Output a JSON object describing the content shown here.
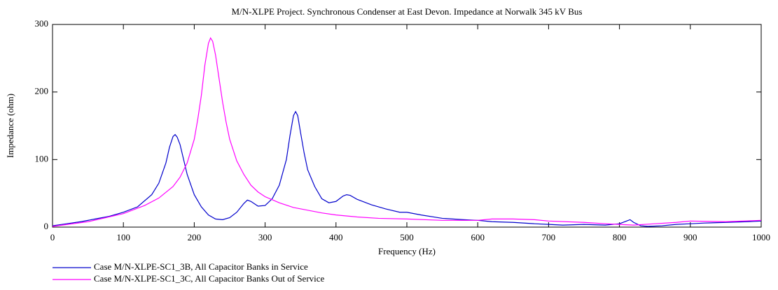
{
  "chart_data": {
    "type": "line",
    "title": "M/N-XLPE Project. Synchronous Condenser at East Devon. Impedance at Norwalk 345 kV Bus",
    "xlabel": "Frequency (Hz)",
    "ylabel": "Impedance (ohm)",
    "xlim": [
      0,
      1000
    ],
    "ylim": [
      0,
      300
    ],
    "xticks": [
      0,
      100,
      200,
      300,
      400,
      500,
      600,
      700,
      800,
      900,
      1000
    ],
    "yticks": [
      0,
      100,
      200,
      300
    ],
    "series": [
      {
        "name": "Case M/N-XLPE-SC1_3B, All Capacitor Banks in Service",
        "color": "#0000cc",
        "x": [
          0,
          20,
          40,
          60,
          80,
          100,
          120,
          140,
          150,
          160,
          165,
          170,
          173,
          176,
          180,
          185,
          190,
          200,
          210,
          220,
          230,
          240,
          250,
          260,
          270,
          275,
          280,
          290,
          300,
          310,
          320,
          330,
          335,
          340,
          343,
          346,
          350,
          355,
          360,
          370,
          380,
          390,
          400,
          410,
          415,
          420,
          430,
          450,
          470,
          490,
          500,
          520,
          550,
          580,
          600,
          620,
          650,
          680,
          700,
          720,
          750,
          780,
          800,
          810,
          815,
          820,
          830,
          840,
          860,
          880,
          900,
          920,
          950,
          980,
          1000
        ],
        "values": [
          2,
          5,
          8,
          12,
          16,
          22,
          30,
          48,
          65,
          95,
          118,
          134,
          137,
          133,
          122,
          100,
          78,
          48,
          30,
          18,
          12,
          11,
          14,
          22,
          35,
          40,
          38,
          31,
          32,
          42,
          62,
          100,
          135,
          165,
          171,
          165,
          140,
          110,
          85,
          60,
          42,
          36,
          38,
          46,
          48,
          47,
          41,
          33,
          27,
          22,
          22,
          18,
          13,
          11,
          10,
          8,
          7,
          5,
          4,
          3,
          4,
          3,
          5,
          9,
          11,
          7,
          2,
          1,
          2,
          4,
          5,
          6,
          7,
          8,
          9
        ]
      },
      {
        "name": "Case M/N-XLPE-SC1_3C, All Capacitor Banks Out of Service",
        "color": "#ff00ff",
        "x": [
          0,
          50,
          100,
          130,
          150,
          170,
          180,
          190,
          200,
          205,
          210,
          215,
          220,
          223,
          226,
          230,
          235,
          240,
          245,
          250,
          260,
          270,
          280,
          290,
          300,
          320,
          340,
          360,
          380,
          400,
          430,
          460,
          500,
          550,
          600,
          620,
          650,
          680,
          700,
          750,
          780,
          800,
          820,
          850,
          880,
          900,
          950,
          1000
        ],
        "values": [
          1,
          8,
          20,
          32,
          43,
          60,
          74,
          95,
          130,
          160,
          195,
          240,
          272,
          280,
          275,
          255,
          220,
          185,
          155,
          130,
          98,
          78,
          62,
          52,
          45,
          36,
          29,
          25,
          21,
          18,
          15,
          13,
          12,
          10,
          10,
          12,
          12,
          11,
          9,
          7,
          5,
          4,
          3,
          5,
          7,
          9,
          8,
          10
        ]
      }
    ]
  }
}
